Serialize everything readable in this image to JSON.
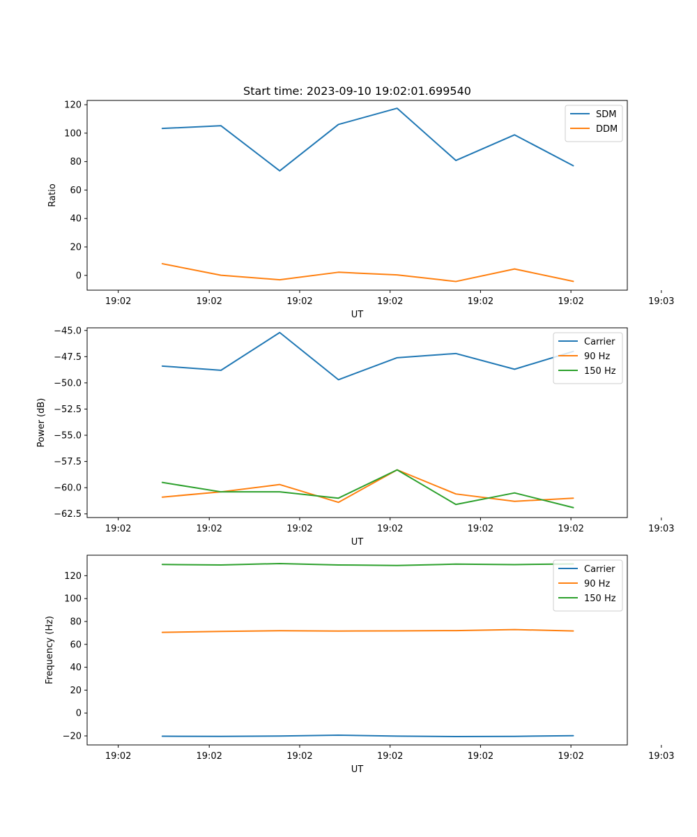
{
  "figure": {
    "title": "Start time: 2023-09-10 19:02:01.699540"
  },
  "chart_data": [
    {
      "type": "line",
      "title": "Start time: 2023-09-10 19:02:01.699540",
      "xlabel": "UT",
      "ylabel": "Ratio",
      "xlim": [
        -1.28,
        7.92
      ],
      "ylim": [
        -10.4,
        123.0
      ],
      "x": [
        0,
        1,
        2,
        3,
        4,
        5,
        6,
        7
      ],
      "xticks": [
        -0.75,
        0.8,
        2.34,
        3.88,
        5.42,
        6.96,
        8.5
      ],
      "xtick_labels": [
        "19:02",
        "19:02",
        "19:02",
        "19:02",
        "19:02",
        "19:02",
        "19:03"
      ],
      "yticks": [
        0,
        20,
        40,
        60,
        80,
        100,
        120
      ],
      "ytick_labels": [
        "0",
        "20",
        "40",
        "60",
        "80",
        "100",
        "120"
      ],
      "grid": false,
      "legend_position": "top-right",
      "series": [
        {
          "name": "SDM",
          "color": "#1f77b4",
          "values": [
            103.3,
            105.2,
            73.5,
            106.1,
            117.5,
            80.8,
            98.8,
            77.1
          ]
        },
        {
          "name": "DDM",
          "color": "#ff7f0e",
          "values": [
            8.2,
            0.1,
            -3.1,
            2.2,
            0.3,
            -4.3,
            4.5,
            -4.2
          ]
        }
      ]
    },
    {
      "type": "line",
      "title": "",
      "xlabel": "UT",
      "ylabel": "Power (dB)",
      "xlim": [
        -1.28,
        7.92
      ],
      "ylim": [
        -62.85,
        -44.75
      ],
      "x": [
        0,
        1,
        2,
        3,
        4,
        5,
        6,
        7
      ],
      "xticks": [
        -0.75,
        0.8,
        2.34,
        3.88,
        5.42,
        6.96,
        8.5
      ],
      "xtick_labels": [
        "19:02",
        "19:02",
        "19:02",
        "19:02",
        "19:02",
        "19:02",
        "19:03"
      ],
      "yticks": [
        -62.5,
        -60.0,
        -57.5,
        -55.0,
        -52.5,
        -50.0,
        -47.5,
        -45.0
      ],
      "ytick_labels": [
        "−62.5",
        "−60.0",
        "−57.5",
        "−55.0",
        "−52.5",
        "−50.0",
        "−47.5",
        "−45.0"
      ],
      "grid": false,
      "legend_position": "top-right",
      "series": [
        {
          "name": "Carrier",
          "color": "#1f77b4",
          "values": [
            -48.4,
            -48.8,
            -45.2,
            -49.7,
            -47.6,
            -47.2,
            -48.7,
            -47.0
          ]
        },
        {
          "name": "90 Hz",
          "color": "#ff7f0e",
          "values": [
            -60.9,
            -60.4,
            -59.7,
            -61.4,
            -58.3,
            -60.6,
            -61.3,
            -61.0
          ]
        },
        {
          "name": "150 Hz",
          "color": "#2ca02c",
          "values": [
            -59.5,
            -60.4,
            -60.4,
            -61.0,
            -58.3,
            -61.6,
            -60.5,
            -61.9
          ]
        }
      ]
    },
    {
      "type": "line",
      "title": "",
      "xlabel": "UT",
      "ylabel": "Frequency (Hz)",
      "xlim": [
        -1.28,
        7.92
      ],
      "ylim": [
        -27.9,
        137.9
      ],
      "x": [
        0,
        1,
        2,
        3,
        4,
        5,
        6,
        7
      ],
      "xticks": [
        -0.75,
        0.8,
        2.34,
        3.88,
        5.42,
        6.96,
        8.5
      ],
      "xtick_labels": [
        "19:02",
        "19:02",
        "19:02",
        "19:02",
        "19:02",
        "19:02",
        "19:03"
      ],
      "yticks": [
        -20,
        0,
        20,
        40,
        60,
        80,
        100,
        120
      ],
      "ytick_labels": [
        "−20",
        "0",
        "20",
        "40",
        "60",
        "80",
        "100",
        "120"
      ],
      "grid": false,
      "legend_position": "top-right",
      "series": [
        {
          "name": "Carrier",
          "color": "#1f77b4",
          "values": [
            -20.3,
            -20.4,
            -20.1,
            -19.4,
            -20.2,
            -20.6,
            -20.4,
            -19.8
          ]
        },
        {
          "name": "90 Hz",
          "color": "#ff7f0e",
          "values": [
            70.5,
            71.3,
            71.9,
            71.6,
            71.8,
            72.0,
            72.9,
            71.7
          ]
        },
        {
          "name": "150 Hz",
          "color": "#2ca02c",
          "values": [
            129.8,
            129.4,
            130.6,
            129.4,
            128.9,
            130.1,
            129.7,
            130.3
          ]
        }
      ]
    }
  ]
}
